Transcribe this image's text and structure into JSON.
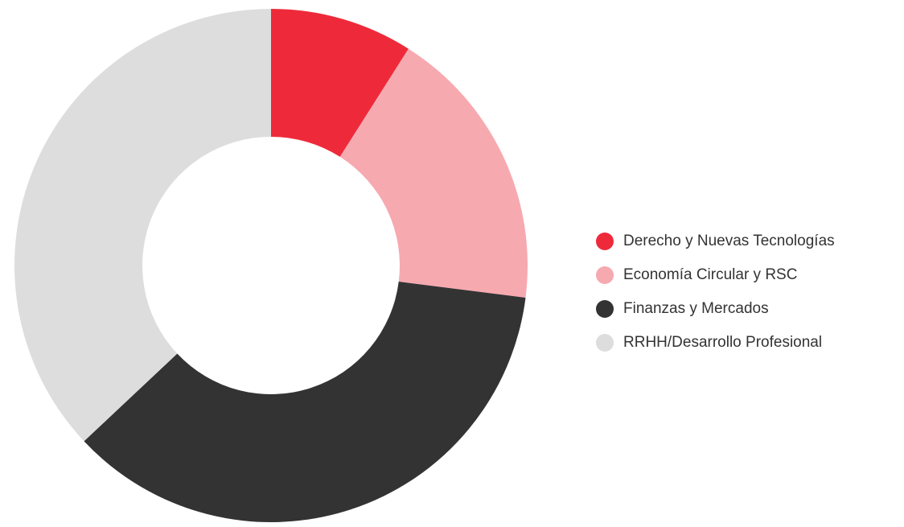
{
  "chart_data": {
    "type": "donut",
    "categories": [
      "Derecho y Nuevas Tecnologías",
      "Economía Circular y RSC",
      "Finanzas y Mercados",
      "RRHH/Desarrollo Profesional"
    ],
    "values": [
      9,
      18,
      36,
      37
    ],
    "colors": [
      "#ee2a3a",
      "#f7a9b0",
      "#333333",
      "#dddddd"
    ],
    "legend": "right"
  }
}
